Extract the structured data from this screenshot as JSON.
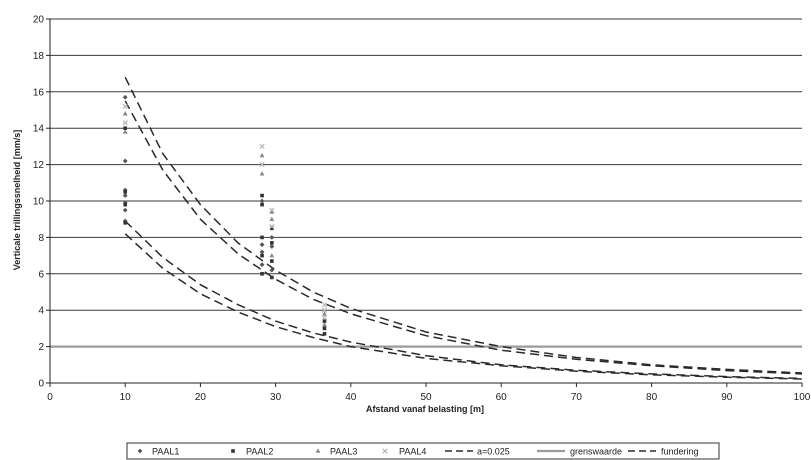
{
  "chart_data": {
    "type": "scatter",
    "title": "",
    "xlabel": "Afstand vanaf belasting [m]",
    "ylabel": "Verticale trillingssnelheid [mm/s]",
    "xlim": [
      0,
      100
    ],
    "ylim": [
      0,
      20
    ],
    "xticks": [
      0,
      10,
      20,
      30,
      40,
      50,
      60,
      70,
      80,
      90,
      100
    ],
    "yticks": [
      0,
      2,
      4,
      6,
      8,
      10,
      12,
      14,
      16,
      18,
      20
    ],
    "grid": "horizontal",
    "legend_position": "bottom",
    "series": [
      {
        "name": "PAAL1",
        "kind": "points",
        "color": "#555555",
        "marker": "diamond",
        "points": [
          [
            10,
            8.9
          ],
          [
            10,
            9.5
          ],
          [
            10,
            9.9
          ],
          [
            10,
            10.3
          ],
          [
            10,
            10.6
          ],
          [
            10,
            12.2
          ],
          [
            10,
            15.7
          ],
          [
            29.5,
            6.2
          ],
          [
            29.5,
            7.5
          ],
          [
            29.5,
            8.0
          ],
          [
            28.2,
            6.5
          ],
          [
            28.2,
            7.2
          ],
          [
            28.2,
            7.6
          ],
          [
            28.2,
            10.0
          ]
        ]
      },
      {
        "name": "PAAL2",
        "kind": "points",
        "color": "#333333",
        "marker": "square",
        "points": [
          [
            10,
            8.8
          ],
          [
            10,
            9.8
          ],
          [
            10,
            10.5
          ],
          [
            10,
            14.0
          ],
          [
            29.5,
            5.8
          ],
          [
            29.5,
            6.7
          ],
          [
            29.5,
            7.7
          ],
          [
            29.5,
            8.5
          ],
          [
            28.2,
            6.0
          ],
          [
            28.2,
            7.0
          ],
          [
            28.2,
            8.0
          ],
          [
            28.2,
            9.8
          ],
          [
            28.2,
            10.3
          ],
          [
            36.5,
            2.7
          ],
          [
            36.5,
            3.0
          ],
          [
            36.5,
            3.4
          ]
        ]
      },
      {
        "name": "PAAL3",
        "kind": "points",
        "color": "#888888",
        "marker": "triangle",
        "points": [
          [
            10,
            13.8
          ],
          [
            10,
            14.8
          ],
          [
            29.5,
            7.0
          ],
          [
            29.5,
            9.0
          ],
          [
            29.5,
            9.4
          ],
          [
            28.2,
            11.5
          ],
          [
            28.2,
            12.5
          ],
          [
            36.5,
            3.2
          ],
          [
            36.5,
            3.8
          ]
        ]
      },
      {
        "name": "PAAL4",
        "kind": "points",
        "color": "#b8b8b8",
        "marker": "cross",
        "points": [
          [
            10,
            14.3
          ],
          [
            10,
            15.2
          ],
          [
            29.5,
            8.6
          ],
          [
            29.5,
            9.5
          ],
          [
            28.2,
            12.0
          ],
          [
            28.2,
            13.0
          ],
          [
            36.5,
            3.6
          ],
          [
            36.5,
            4.0
          ],
          [
            36.5,
            4.3
          ]
        ]
      },
      {
        "name": "a=0.025",
        "kind": "curves",
        "color": "#2a2a2a",
        "dash": "dashed",
        "curves": [
          [
            [
              10,
              16.8
            ],
            [
              15,
              12.6
            ],
            [
              20,
              9.8
            ],
            [
              25,
              7.7
            ],
            [
              30,
              6.2
            ],
            [
              35,
              5.0
            ],
            [
              40,
              4.1
            ],
            [
              50,
              2.8
            ],
            [
              60,
              2.0
            ],
            [
              70,
              1.4
            ],
            [
              80,
              1.0
            ],
            [
              90,
              0.75
            ],
            [
              100,
              0.55
            ]
          ],
          [
            [
              10,
              15.5
            ],
            [
              15,
              11.7
            ],
            [
              20,
              9.0
            ],
            [
              25,
              7.1
            ],
            [
              30,
              5.7
            ],
            [
              35,
              4.6
            ],
            [
              40,
              3.8
            ],
            [
              50,
              2.6
            ],
            [
              60,
              1.8
            ],
            [
              70,
              1.3
            ],
            [
              80,
              0.95
            ],
            [
              90,
              0.68
            ],
            [
              100,
              0.5
            ]
          ],
          [
            [
              10,
              8.9
            ],
            [
              15,
              6.9
            ],
            [
              20,
              5.4
            ],
            [
              25,
              4.3
            ],
            [
              30,
              3.4
            ],
            [
              35,
              2.75
            ],
            [
              40,
              2.25
            ],
            [
              50,
              1.5
            ],
            [
              60,
              1.0
            ],
            [
              70,
              0.7
            ],
            [
              80,
              0.5
            ],
            [
              90,
              0.35
            ],
            [
              100,
              0.25
            ]
          ],
          [
            [
              10,
              8.2
            ],
            [
              15,
              6.3
            ],
            [
              20,
              4.9
            ],
            [
              25,
              3.9
            ],
            [
              30,
              3.1
            ],
            [
              35,
              2.5
            ],
            [
              40,
              2.0
            ],
            [
              50,
              1.35
            ],
            [
              60,
              0.95
            ],
            [
              70,
              0.65
            ],
            [
              80,
              0.45
            ],
            [
              90,
              0.32
            ],
            [
              100,
              0.22
            ]
          ]
        ]
      },
      {
        "name": "grenswaarde",
        "kind": "hline",
        "color": "#9a9a9a",
        "y": 2.0
      },
      {
        "name": "fundering",
        "kind": "legend-only",
        "color": "#2a2a2a",
        "dash": "dashed"
      }
    ]
  }
}
